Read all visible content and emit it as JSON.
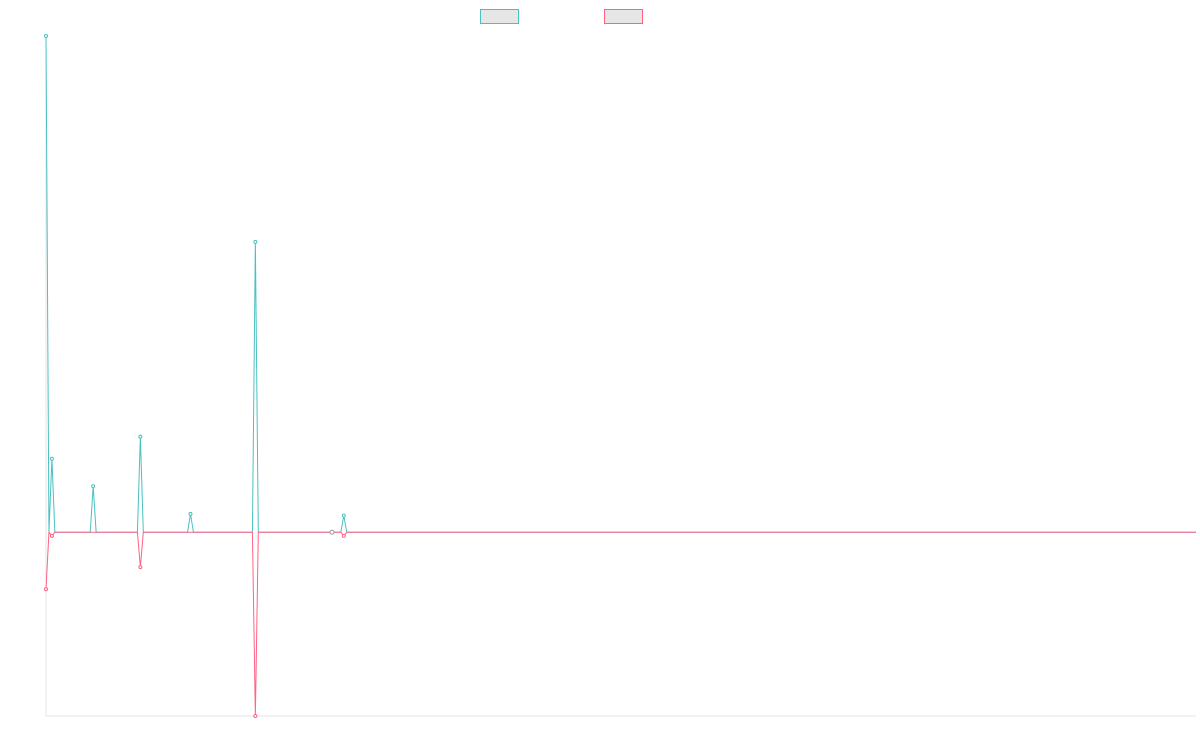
{
  "chart_data": {
    "type": "line",
    "title": "",
    "xlabel": "",
    "ylabel": "",
    "x": [
      0,
      1,
      2,
      3,
      4,
      5,
      6,
      7,
      8,
      9,
      10,
      11,
      12,
      13,
      14,
      15,
      16,
      17,
      18,
      19,
      20,
      21,
      22,
      23,
      24,
      25,
      26,
      27,
      28,
      29,
      30,
      31,
      32,
      33,
      34,
      35,
      36,
      37,
      38,
      39,
      40,
      41,
      42,
      43,
      44,
      45,
      46,
      47,
      48,
      49,
      50,
      51,
      52,
      53,
      54,
      55,
      56,
      57,
      58,
      59,
      60,
      61,
      62,
      63,
      64,
      65,
      66,
      67,
      68,
      69,
      70,
      71,
      72,
      73,
      74,
      75,
      76,
      77,
      78,
      79,
      80,
      81,
      82,
      83,
      84,
      85,
      86,
      87,
      88,
      89,
      90,
      91,
      92,
      93,
      94,
      95,
      96,
      97,
      98,
      99,
      100,
      101,
      102,
      103,
      104,
      105,
      106,
      107,
      108,
      109,
      110,
      111,
      112,
      113,
      114,
      115,
      116,
      117,
      118,
      119,
      120,
      121,
      122,
      123,
      124,
      125,
      126,
      127,
      128,
      129,
      130,
      131,
      132,
      133,
      134,
      135,
      136,
      137,
      138,
      139,
      140,
      141,
      142,
      143,
      144,
      145,
      146,
      147,
      148,
      149,
      150,
      151,
      152,
      153,
      154,
      155,
      156,
      157,
      158,
      159,
      160,
      161,
      162,
      163,
      164,
      165,
      166,
      167,
      168,
      169,
      170,
      171,
      172,
      173,
      174,
      175,
      176,
      177,
      178,
      179,
      180,
      181,
      182,
      183,
      184,
      185,
      186,
      187,
      188,
      189,
      190,
      191,
      192,
      193,
      194,
      195,
      196,
      197,
      198,
      199,
      200,
      201,
      202,
      203,
      204,
      205,
      206,
      207,
      208,
      209,
      210,
      211,
      212,
      213,
      214,
      215,
      216,
      217,
      218,
      219,
      220,
      221,
      222,
      223,
      224,
      225,
      226,
      227,
      228,
      229,
      230,
      231,
      232,
      233,
      234,
      235,
      236,
      237,
      238,
      239,
      240,
      241,
      242,
      243,
      244,
      245,
      246,
      247,
      248,
      249,
      250,
      251,
      252,
      253,
      254,
      255,
      256,
      257,
      258,
      259,
      260,
      261,
      262,
      263,
      264,
      265,
      266,
      267,
      268,
      269,
      270,
      271,
      272,
      273,
      274,
      275,
      276,
      277,
      278,
      279,
      280,
      281,
      282,
      283,
      284,
      285,
      286,
      287,
      288,
      289,
      290,
      291,
      292,
      293,
      294,
      295,
      296,
      297,
      298,
      299,
      300,
      301,
      302,
      303,
      304,
      305,
      306,
      307,
      308,
      309,
      310,
      311,
      312,
      313,
      314,
      315,
      316,
      317,
      318,
      319,
      320,
      321,
      322,
      323,
      324,
      325,
      326,
      327,
      328,
      329,
      330,
      331,
      332,
      333,
      334,
      335,
      336,
      337,
      338,
      339,
      340,
      341,
      342,
      343,
      344,
      345,
      346,
      347,
      348,
      349,
      350,
      351,
      352,
      353,
      354,
      355,
      356,
      357,
      358,
      359,
      360,
      361,
      362,
      363,
      364,
      365,
      366,
      367,
      368,
      369,
      370,
      371,
      372,
      373,
      374,
      375,
      376,
      377,
      378,
      379,
      380,
      381,
      382,
      383,
      384,
      385,
      386,
      387,
      388,
      389,
      390
    ],
    "series": [
      {
        "name": "",
        "color": "#4bc0c0",
        "spikes": [
          [
            0,
            270
          ],
          [
            2,
            40
          ],
          [
            16,
            25
          ],
          [
            32,
            52
          ],
          [
            49,
            10
          ],
          [
            71,
            158
          ],
          [
            101,
            9
          ]
        ],
        "baseline": 0
      },
      {
        "name": "",
        "color": "#ff6384",
        "spikes": [
          [
            0,
            -31
          ],
          [
            2,
            -2
          ],
          [
            32,
            -19
          ],
          [
            71,
            -100
          ],
          [
            101,
            -2
          ]
        ],
        "baseline": 0
      }
    ],
    "ylim": [
      -100,
      270
    ],
    "xlim": [
      0,
      390
    ],
    "grid": false,
    "legend": "top"
  }
}
